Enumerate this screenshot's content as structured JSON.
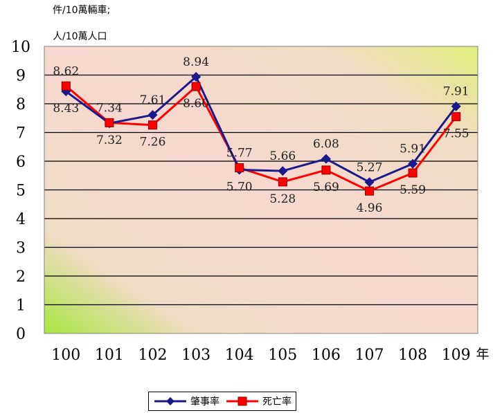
{
  "chart_data": {
    "type": "line",
    "ylabel_lines": [
      "件/10萬輛車;",
      "人/10萬人口"
    ],
    "xlabel": "年",
    "categories": [
      "100",
      "101",
      "102",
      "103",
      "104",
      "105",
      "106",
      "107",
      "108",
      "109"
    ],
    "ylim": [
      0,
      10
    ],
    "yticks": [
      "0",
      "1",
      "2",
      "3",
      "4",
      "5",
      "6",
      "7",
      "8",
      "9",
      "10"
    ],
    "grid": true,
    "legend": "bottom",
    "series": [
      {
        "name": "肇事率",
        "color": "#1a1a8c",
        "marker": "diamond",
        "values": [
          8.43,
          7.32,
          7.61,
          8.94,
          5.7,
          5.66,
          6.08,
          5.27,
          5.91,
          7.91
        ],
        "labels": [
          "8.43",
          "7.32",
          "7.61",
          "8.94",
          "5.70",
          "5.66",
          "6.08",
          "5.27",
          "5.91",
          "7.91"
        ]
      },
      {
        "name": "死亡率",
        "color": "#ff0000",
        "marker": "square",
        "values": [
          8.62,
          7.34,
          7.26,
          8.6,
          5.77,
          5.28,
          5.69,
          4.96,
          5.59,
          7.55
        ],
        "labels": [
          "8.62",
          "7.34",
          "7.26",
          "8.60",
          "5.77",
          "5.28",
          "5.69",
          "4.96",
          "5.59",
          "7.55"
        ]
      }
    ]
  }
}
